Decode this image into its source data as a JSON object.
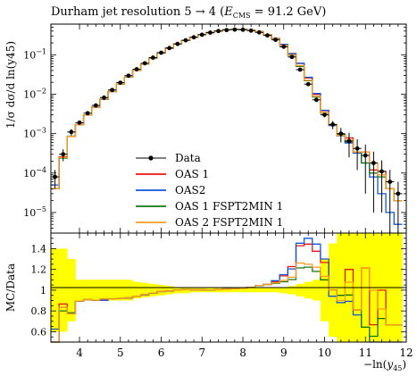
{
  "chart_data": {
    "type": "line",
    "title": "Durham jet resolution 5 → 4 (E_CMS = 91.2 GeV)",
    "title_parts": {
      "main": "Durham jet resolution 5 → 4 (",
      "e": "E",
      "sub": "CMS",
      "rest": " = 91.2 GeV)"
    },
    "xlabel": "−ln(y45)",
    "xlabel_parts": {
      "main": "−ln(",
      "y": "y",
      "sub": "45",
      "close": ")"
    },
    "ylabel_top": "1/σ dσ/d ln(y45)",
    "ylabel_ratio": "MC/Data",
    "log_y_top": true,
    "xlim": [
      3.3,
      12.0
    ],
    "ylim_top": [
      3e-06,
      0.6
    ],
    "ylim_ratio": [
      0.5,
      1.55
    ],
    "x_ticks": [
      "4",
      "5",
      "6",
      "7",
      "8",
      "9",
      "10",
      "11",
      "12"
    ],
    "y_ticks_top": [
      {
        "v": 0.1,
        "b": "10",
        "e": "−1"
      },
      {
        "v": 0.01,
        "b": "10",
        "e": "−2"
      },
      {
        "v": 0.001,
        "b": "10",
        "e": "−3"
      },
      {
        "v": 0.0001,
        "b": "10",
        "e": "−4"
      },
      {
        "v": 1e-05,
        "b": "10",
        "e": "−5"
      }
    ],
    "y_ticks_ratio": [
      "1.4",
      "1.2",
      "1",
      "0.8",
      "0.6"
    ],
    "legend_position": "lower-center",
    "colors": {
      "data": "#000000",
      "oas1": "#ee1111",
      "oas2": "#1155dd",
      "oas1_fspt": "#117711",
      "oas2_fspt": "#ff9922",
      "band": "#ffff00"
    },
    "bin_edges": [
      3.3,
      3.5,
      3.7,
      3.9,
      4.1,
      4.3,
      4.5,
      4.7,
      4.9,
      5.1,
      5.3,
      5.5,
      5.7,
      5.9,
      6.1,
      6.3,
      6.5,
      6.7,
      6.9,
      7.1,
      7.3,
      7.5,
      7.7,
      7.9,
      8.1,
      8.3,
      8.5,
      8.7,
      8.9,
      9.1,
      9.3,
      9.5,
      9.7,
      9.9,
      10.1,
      10.3,
      10.5,
      10.7,
      10.9,
      11.1,
      11.3,
      11.5,
      11.7,
      11.9
    ],
    "data_series": {
      "name": "Data",
      "x": [
        3.4,
        3.6,
        3.8,
        4.0,
        4.2,
        4.4,
        4.6,
        4.8,
        5.0,
        5.2,
        5.4,
        5.6,
        5.8,
        6.0,
        6.2,
        6.4,
        6.6,
        6.8,
        7.0,
        7.2,
        7.4,
        7.6,
        7.8,
        8.0,
        8.2,
        8.4,
        8.6,
        8.8,
        9.0,
        9.2,
        9.4,
        9.6,
        9.8,
        10.0,
        10.2,
        10.4,
        10.6,
        10.8,
        11.0,
        11.2,
        11.4,
        11.6,
        11.8
      ],
      "y": [
        8e-05,
        0.0003,
        0.0011,
        0.0019,
        0.0033,
        0.0052,
        0.0082,
        0.0128,
        0.0196,
        0.0295,
        0.0429,
        0.0609,
        0.0845,
        0.113,
        0.148,
        0.189,
        0.233,
        0.278,
        0.323,
        0.365,
        0.4,
        0.424,
        0.436,
        0.432,
        0.41,
        0.37,
        0.31,
        0.24,
        0.16,
        0.088,
        0.042,
        0.018,
        0.0072,
        0.003,
        0.0017,
        0.001,
        0.00065,
        0.00042,
        0.00028,
        0.00018,
        0.00011,
        6e-05,
        3e-05
      ],
      "err_lo": [
        4e-05,
        0.0001,
        0.0002,
        0.0002,
        0.0002,
        0.0003,
        0.0004,
        0.0005,
        0.0006,
        0.0008,
        0.001,
        0.0012,
        0.0015,
        0.002,
        0.002,
        0.003,
        0.003,
        0.003,
        0.004,
        0.004,
        0.004,
        0.004,
        0.004,
        0.004,
        0.004,
        0.004,
        0.004,
        0.004,
        0.003,
        0.002,
        0.001,
        0.0006,
        0.0003,
        0.0004,
        0.0004,
        0.0004,
        0.0004,
        0.0003,
        0.00025,
        0.00017,
        0.0001,
        5.7e-05,
        2.9e-05
      ],
      "err_hi": [
        4e-05,
        0.0001,
        0.0002,
        0.0002,
        0.0002,
        0.0003,
        0.0004,
        0.0005,
        0.0006,
        0.0008,
        0.001,
        0.0012,
        0.0015,
        0.002,
        0.002,
        0.003,
        0.003,
        0.003,
        0.004,
        0.004,
        0.004,
        0.004,
        0.004,
        0.004,
        0.004,
        0.004,
        0.004,
        0.004,
        0.003,
        0.002,
        0.001,
        0.0006,
        0.0003,
        0.0004,
        0.0004,
        0.0004,
        0.0004,
        0.0003,
        0.00025,
        0.00017,
        0.0001,
        6e-05,
        3e-05
      ]
    },
    "mc_series": [
      {
        "name": "OAS 1",
        "color_key": "oas1",
        "values": [
          4e-05,
          0.00026,
          0.00085,
          0.0017,
          0.003,
          0.0047,
          0.0074,
          0.0117,
          0.018,
          0.0273,
          0.0403,
          0.0582,
          0.082,
          0.1114,
          0.147,
          0.189,
          0.234,
          0.279,
          0.324,
          0.366,
          0.402,
          0.429,
          0.442,
          0.441,
          0.421,
          0.386,
          0.327,
          0.26,
          0.182,
          0.108,
          0.06,
          0.026,
          0.0099,
          0.0038,
          0.0017,
          0.00095,
          0.00078,
          0.00034,
          0.00034,
          0.00012,
          0.00011,
          4e-05,
          2e-05
        ]
      },
      {
        "name": "OAS2",
        "color_key": "oas2",
        "values": [
          5e-05,
          0.00025,
          0.00086,
          0.0017,
          0.003,
          0.0047,
          0.0074,
          0.0117,
          0.018,
          0.0273,
          0.0403,
          0.0582,
          0.082,
          0.1114,
          0.147,
          0.189,
          0.234,
          0.279,
          0.324,
          0.366,
          0.402,
          0.429,
          0.442,
          0.441,
          0.421,
          0.386,
          0.327,
          0.262,
          0.184,
          0.106,
          0.061,
          0.027,
          0.0104,
          0.0039,
          0.0016,
          0.00088,
          0.00058,
          0.00032,
          0.00018,
          8e-05,
          3e-05,
          1e-05,
          5e-06
        ]
      },
      {
        "name": "OAS 1 FSPT2MIN 1",
        "color_key": "oas1_fspt",
        "values": [
          4e-05,
          0.00024,
          0.00086,
          0.0017,
          0.003,
          0.0047,
          0.0075,
          0.0117,
          0.018,
          0.0274,
          0.0404,
          0.0584,
          0.0822,
          0.1116,
          0.1472,
          0.189,
          0.234,
          0.279,
          0.324,
          0.366,
          0.402,
          0.429,
          0.442,
          0.44,
          0.421,
          0.387,
          0.327,
          0.256,
          0.173,
          0.097,
          0.051,
          0.022,
          0.0085,
          0.0033,
          0.0017,
          0.00095,
          0.00062,
          0.00034,
          0.00018,
          0.0001,
          8e-05,
          4e-05,
          2e-05
        ]
      },
      {
        "name": "OAS 2 FSPT2MIN 1",
        "color_key": "oas2_fspt",
        "values": [
          4e-05,
          0.00025,
          0.00085,
          0.0017,
          0.003,
          0.0047,
          0.0075,
          0.0117,
          0.018,
          0.0274,
          0.0404,
          0.0584,
          0.0822,
          0.1116,
          0.1472,
          0.189,
          0.234,
          0.279,
          0.324,
          0.366,
          0.402,
          0.429,
          0.442,
          0.44,
          0.421,
          0.387,
          0.327,
          0.257,
          0.175,
          0.099,
          0.053,
          0.0225,
          0.0088,
          0.0034,
          0.0017,
          0.0009,
          0.0007,
          0.00034,
          0.00034,
          0.00018,
          9e-05,
          4e-05,
          2e-05
        ]
      }
    ],
    "ratio_band": {
      "half_width": [
        0.4,
        0.4,
        0.3,
        0.1,
        0.1,
        0.1,
        0.1,
        0.1,
        0.1,
        0.1,
        0.08,
        0.07,
        0.06,
        0.05,
        0.04,
        0.03,
        0.03,
        0.02,
        0.02,
        0.02,
        0.02,
        0.02,
        0.02,
        0.02,
        0.02,
        0.02,
        0.02,
        0.02,
        0.03,
        0.04,
        0.06,
        0.08,
        0.1,
        0.3,
        0.45,
        0.55,
        0.6,
        0.6,
        0.6,
        0.6,
        0.6,
        0.6,
        0.6
      ]
    }
  }
}
